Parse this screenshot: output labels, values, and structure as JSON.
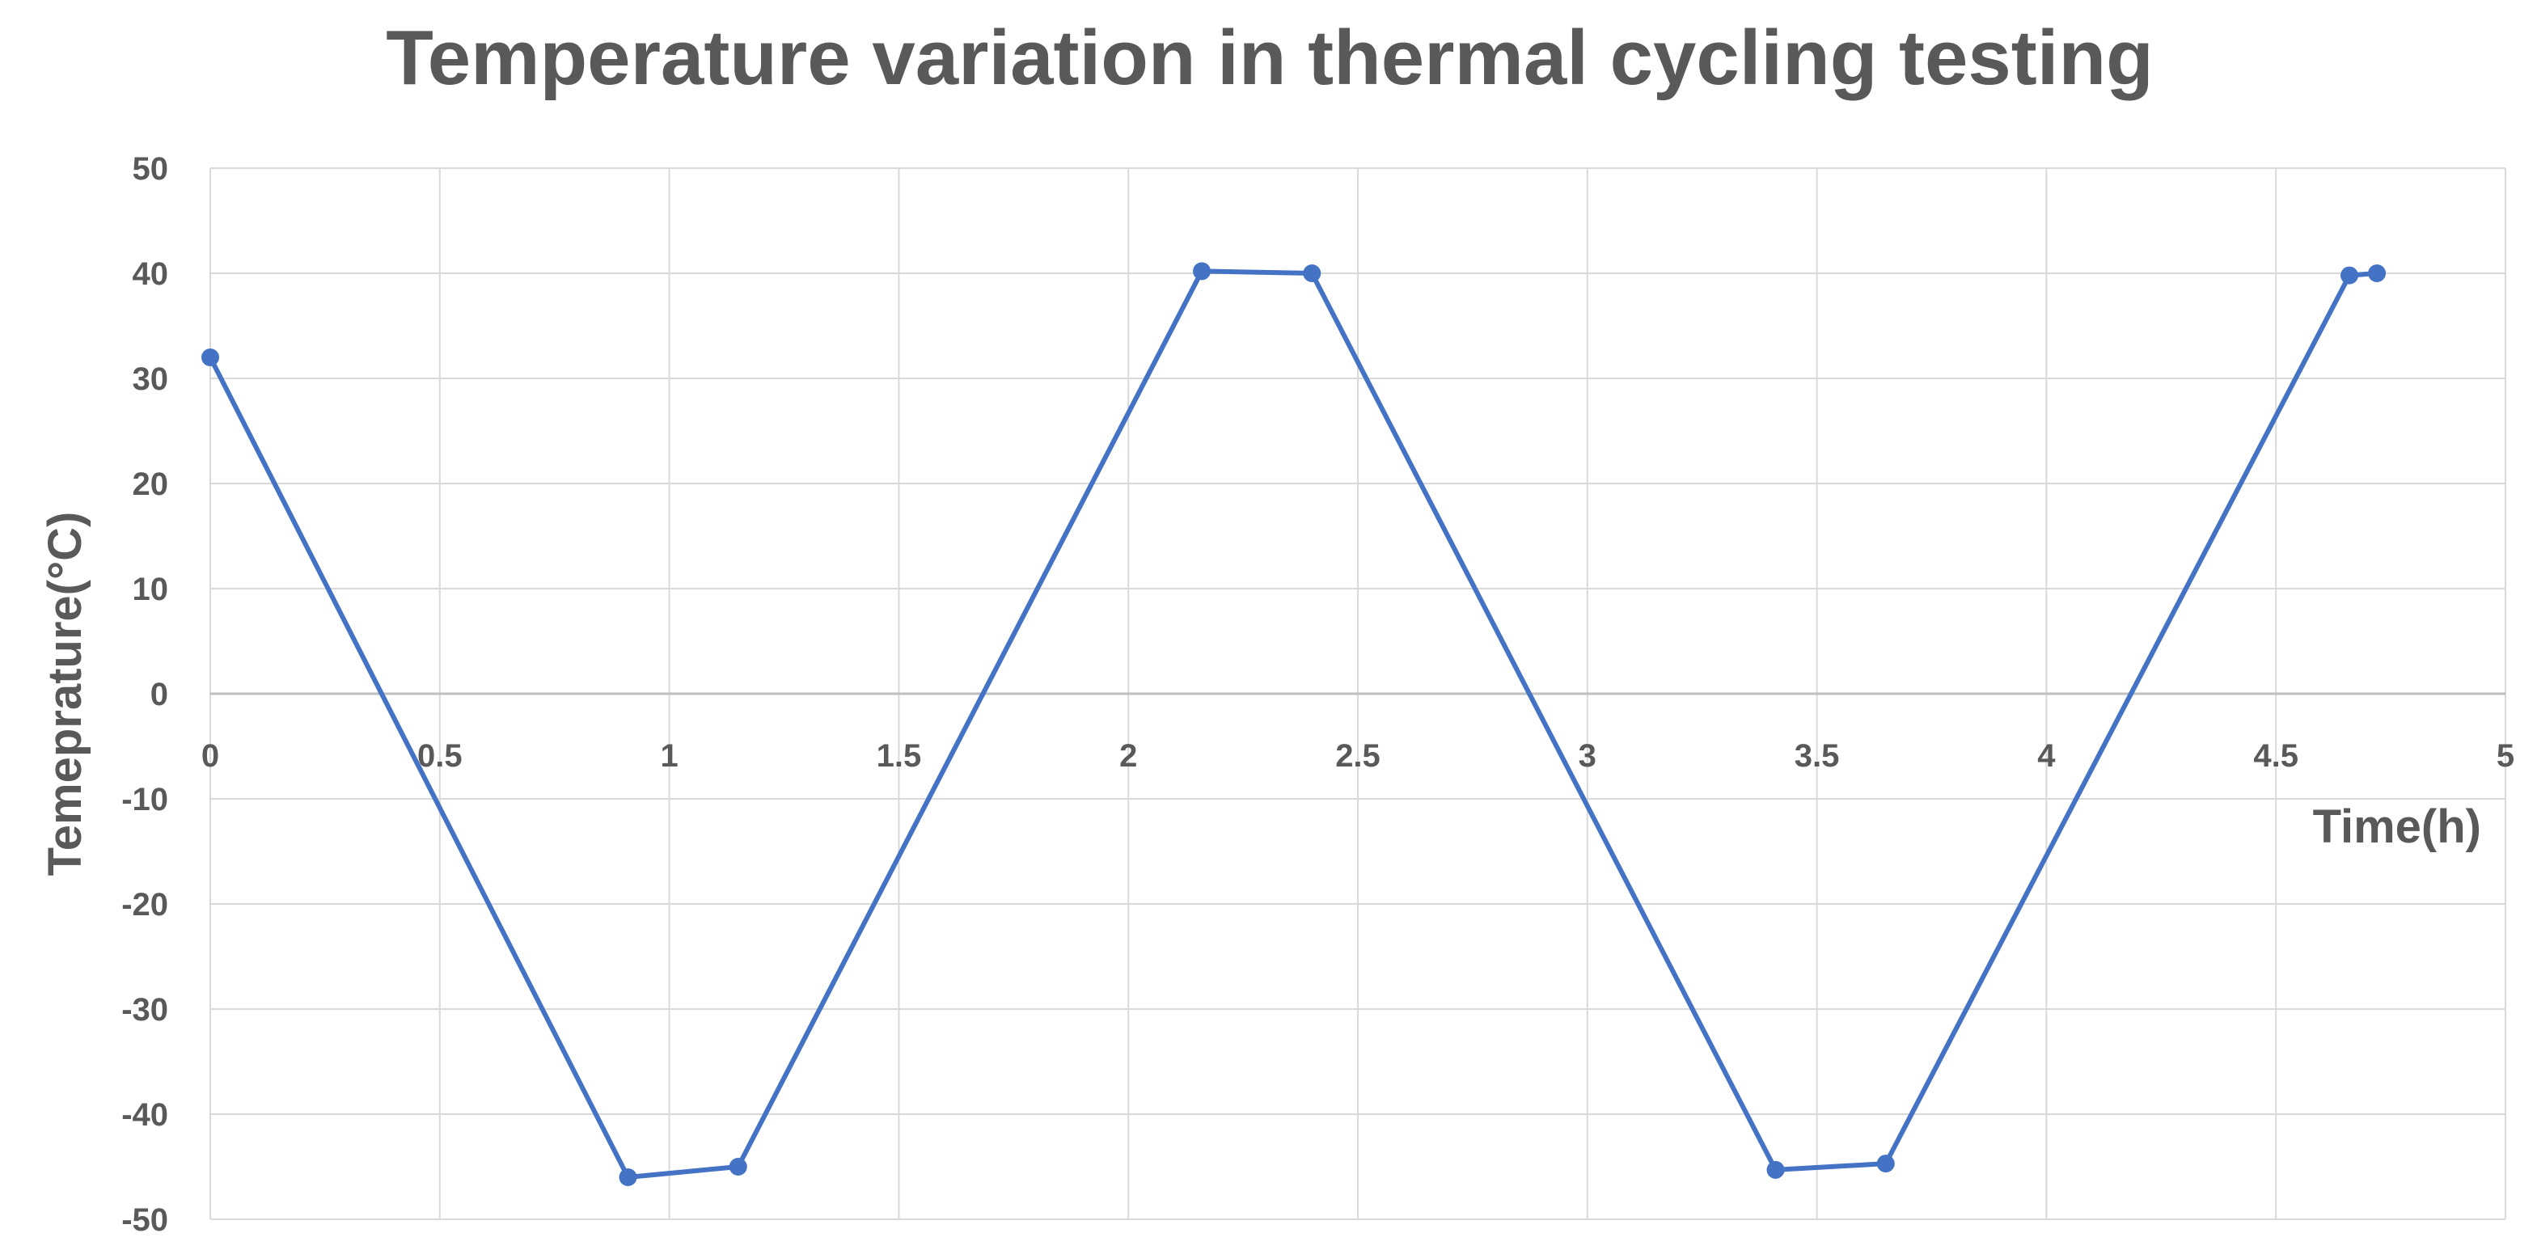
{
  "chart_data": {
    "type": "line",
    "title": "Temperature variation in thermal cycling testing",
    "xlabel": "Time(h)",
    "ylabel": "Temepratur­e(°C)",
    "xlim": [
      0,
      5
    ],
    "ylim": [
      -50,
      50
    ],
    "x_ticks": [
      "0",
      "0.5",
      "1",
      "1.5",
      "2",
      "2.5",
      "3",
      "3.5",
      "4",
      "4.5",
      "5"
    ],
    "y_ticks": [
      "50",
      "40",
      "30",
      "20",
      "10",
      "0",
      "-10",
      "-20",
      "-30",
      "-40",
      "-50"
    ],
    "grid": true,
    "legend": "none",
    "series": [
      {
        "color": "#4472C4",
        "marker": "circle",
        "x": [
          0,
          0.91,
          1.15,
          2.16,
          2.4,
          3.41,
          3.65,
          4.66,
          4.72
        ],
        "y": [
          32,
          -46,
          -45,
          40.2,
          40,
          -45.3,
          -44.7,
          39.8,
          40
        ]
      }
    ]
  }
}
